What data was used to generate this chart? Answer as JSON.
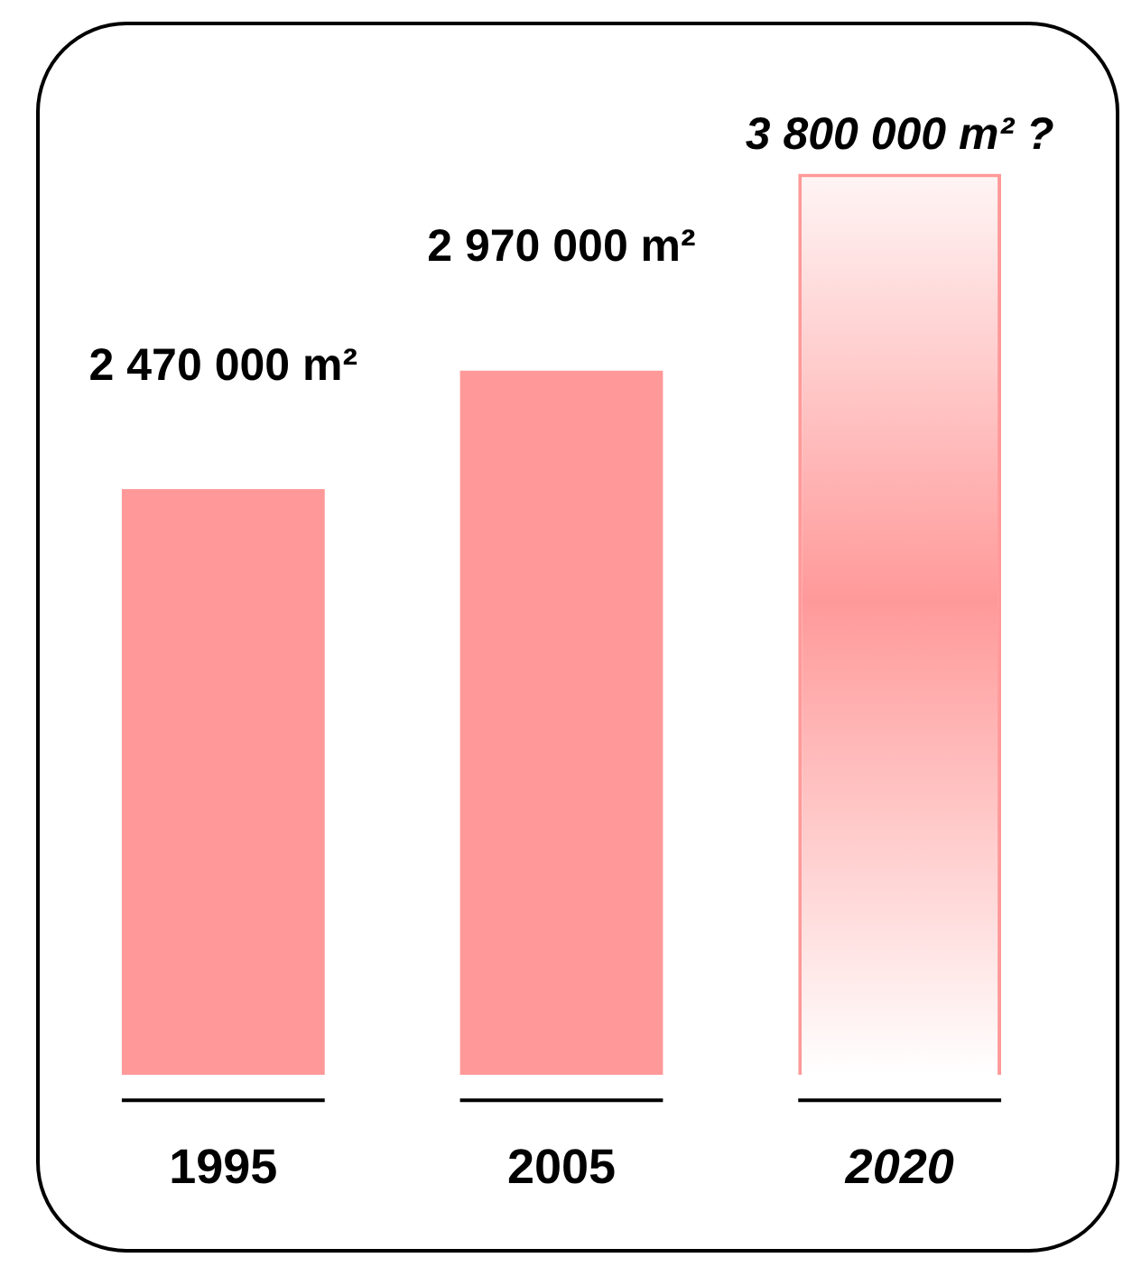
{
  "chart_data": {
    "type": "bar",
    "categories": [
      "1995",
      "2005",
      "2020"
    ],
    "data_labels": false,
    "series": [
      {
        "color": "#ff9999",
        "values": [
          2470000,
          2970000,
          null
        ],
        "value_labels": [
          "2 470 000 m²",
          "2 970 000 m²",
          null
        ]
      },
      {
        "color": "#ff9999",
        "values": [
          null,
          null,
          3800000
        ],
        "value_labels": [
          null,
          null,
          "3 800 000 m² ?"
        ],
        "line_style": "dashed"
      }
    ],
    "legend": false,
    "grid": false
  }
}
